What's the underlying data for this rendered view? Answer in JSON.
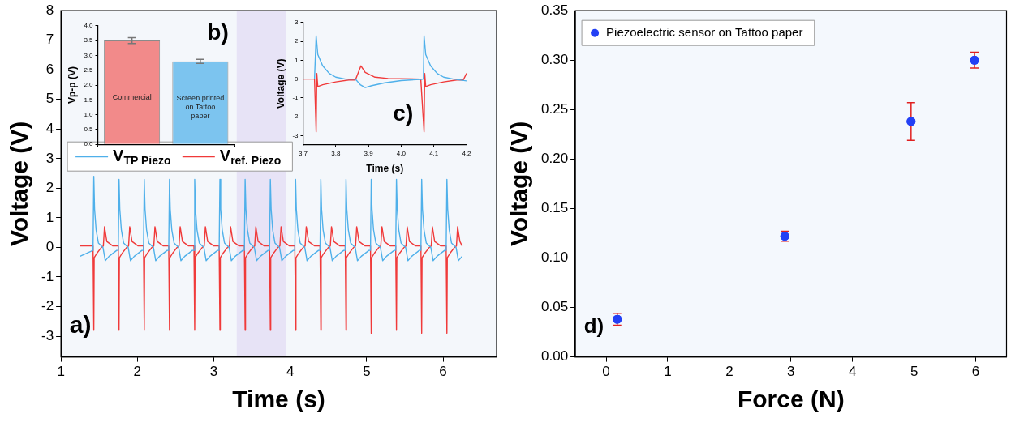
{
  "chart_data": [
    {
      "type": "line",
      "xlabel": "Time (s)",
      "ylabel": "Voltage (V)",
      "xlim": [
        1,
        6.7
      ],
      "xticks": [
        1,
        2,
        3,
        4,
        5,
        6
      ],
      "ylim": [
        -3.7,
        8
      ],
      "yticks": [
        -3,
        -2,
        -1,
        0,
        1,
        2,
        3,
        4,
        5,
        6,
        7,
        8
      ],
      "grid": false,
      "legend": "top left",
      "annotations": [
        "a)"
      ],
      "bands": [
        {
          "axis": "x",
          "from": 3.3,
          "to": 3.95,
          "color": "#e7e3f6"
        }
      ],
      "series": [
        {
          "name": "V$_{TP Piezo}$",
          "color": "#4fb0ea",
          "x": [
            1.25,
            1.42,
            1.43,
            1.44,
            1.46,
            1.49,
            1.55,
            1.58,
            1.63,
            1.73,
            1.75,
            1.76,
            1.77,
            1.79,
            1.82,
            1.88,
            1.91,
            1.96,
            2.06,
            2.08,
            2.09,
            2.1,
            2.12,
            2.15,
            2.21,
            2.24,
            2.29,
            2.39,
            2.41,
            2.42,
            2.43,
            2.45,
            2.48,
            2.54,
            2.57,
            2.62,
            2.72,
            2.74,
            2.75,
            2.76,
            2.78,
            2.81,
            2.87,
            2.9,
            2.95,
            3.05,
            3.07,
            3.08,
            3.09,
            3.11,
            3.14,
            3.2,
            3.23,
            3.28,
            3.38,
            3.4,
            3.41,
            3.42,
            3.44,
            3.47,
            3.53,
            3.56,
            3.61,
            3.71,
            3.73,
            3.74,
            3.75,
            3.77,
            3.8,
            3.86,
            3.89,
            3.94,
            4.04,
            4.06,
            4.07,
            4.08,
            4.1,
            4.13,
            4.19,
            4.22,
            4.27,
            4.37,
            4.39,
            4.4,
            4.41,
            4.43,
            4.46,
            4.52,
            4.55,
            4.6,
            4.7,
            4.72,
            4.73,
            4.74,
            4.76,
            4.79,
            4.85,
            4.88,
            4.93,
            5.03,
            5.05,
            5.06,
            5.07,
            5.09,
            5.12,
            5.18,
            5.21,
            5.26,
            5.36,
            5.38,
            5.39,
            5.4,
            5.42,
            5.45,
            5.51,
            5.54,
            5.59,
            5.69,
            5.71,
            5.72,
            5.73,
            5.75,
            5.78,
            5.84,
            5.87,
            5.92,
            6.02,
            6.04,
            6.05,
            6.06,
            6.08,
            6.11,
            6.17,
            6.2,
            6.25
          ],
          "values": [
            -0.3,
            -0.1,
            2.4,
            1.3,
            0.6,
            0.15,
            0,
            -0.45,
            -0.3,
            -0.1,
            -0.1,
            2.3,
            1.3,
            0.6,
            0.15,
            0,
            -0.45,
            -0.3,
            -0.1,
            -0.1,
            2.3,
            1.3,
            0.6,
            0.15,
            0,
            -0.45,
            -0.3,
            -0.1,
            -0.1,
            2.3,
            1.3,
            0.6,
            0.15,
            0,
            -0.45,
            -0.3,
            -0.1,
            -0.1,
            2.3,
            1.3,
            0.6,
            0.15,
            0,
            -0.45,
            -0.3,
            -0.1,
            -0.1,
            2.3,
            1.3,
            0.6,
            0.15,
            0,
            -0.45,
            -0.3,
            -0.1,
            -0.1,
            2.3,
            1.3,
            0.6,
            0.15,
            0,
            -0.45,
            -0.3,
            -0.1,
            -0.1,
            2.3,
            1.3,
            0.6,
            0.15,
            0,
            -0.45,
            -0.3,
            -0.1,
            -0.1,
            2.3,
            1.3,
            0.6,
            0.15,
            0,
            -0.45,
            -0.3,
            -0.1,
            -0.1,
            2.3,
            1.3,
            0.6,
            0.15,
            0,
            -0.45,
            -0.3,
            -0.1,
            -0.1,
            2.3,
            1.3,
            0.6,
            0.15,
            0,
            -0.45,
            -0.3,
            -0.1,
            -0.1,
            2.3,
            1.3,
            0.6,
            0.15,
            0,
            -0.45,
            -0.3,
            -0.1,
            -0.1,
            2.3,
            1.3,
            0.6,
            0.15,
            0,
            -0.45,
            -0.3,
            -0.1,
            -0.1,
            2.3,
            1.3,
            0.6,
            0.15,
            0,
            -0.45,
            -0.3,
            -0.1,
            -0.1,
            2.3,
            1.3,
            0.6,
            0.15,
            0,
            -0.45,
            -0.3
          ]
        },
        {
          "name": "V$_{ref. Piezo}$",
          "color": "#f03a3a",
          "x": [
            1.25,
            1.42,
            1.43,
            1.435,
            1.47,
            1.53,
            1.555,
            1.57,
            1.6,
            1.68,
            1.75,
            1.76,
            1.765,
            1.8,
            1.86,
            1.885,
            1.9,
            1.93,
            2.01,
            2.08,
            2.09,
            2.095,
            2.13,
            2.19,
            2.215,
            2.23,
            2.26,
            2.34,
            2.41,
            2.42,
            2.425,
            2.46,
            2.52,
            2.545,
            2.56,
            2.59,
            2.67,
            2.74,
            2.75,
            2.755,
            2.79,
            2.85,
            2.875,
            2.89,
            2.92,
            3.0,
            3.07,
            3.08,
            3.085,
            3.12,
            3.18,
            3.205,
            3.22,
            3.25,
            3.33,
            3.4,
            3.41,
            3.415,
            3.45,
            3.51,
            3.535,
            3.55,
            3.58,
            3.66,
            3.73,
            3.74,
            3.745,
            3.78,
            3.84,
            3.865,
            3.88,
            3.91,
            3.99,
            4.06,
            4.07,
            4.075,
            4.11,
            4.17,
            4.195,
            4.21,
            4.24,
            4.32,
            4.39,
            4.4,
            4.405,
            4.44,
            4.5,
            4.525,
            4.54,
            4.57,
            4.65,
            4.72,
            4.73,
            4.735,
            4.77,
            4.83,
            4.855,
            4.87,
            4.9,
            4.98,
            5.05,
            5.06,
            5.065,
            5.1,
            5.16,
            5.185,
            5.2,
            5.23,
            5.31,
            5.38,
            5.39,
            5.395,
            5.43,
            5.49,
            5.515,
            5.53,
            5.56,
            5.64,
            5.71,
            5.72,
            5.725,
            5.76,
            5.82,
            5.845,
            5.86,
            5.89,
            5.97,
            6.04,
            6.05,
            6.055,
            6.09,
            6.15,
            6.175,
            6.19,
            6.22,
            6.25
          ],
          "values": [
            0.05,
            0.05,
            -2.8,
            -0.35,
            -0.2,
            0,
            0.05,
            0.7,
            0.2,
            0.05,
            0.05,
            -2.8,
            -0.35,
            -0.2,
            0,
            0.05,
            0.7,
            0.2,
            0.05,
            0.05,
            -2.8,
            -0.35,
            -0.2,
            0,
            0.05,
            0.7,
            0.2,
            0.05,
            0.05,
            -2.8,
            -0.35,
            -0.2,
            0,
            0.05,
            0.7,
            0.2,
            0.05,
            0.05,
            -2.8,
            -0.35,
            -0.2,
            0,
            0.05,
            0.7,
            0.2,
            0.05,
            0.05,
            -2.8,
            -0.35,
            -0.2,
            0,
            0.05,
            0.7,
            0.2,
            0.05,
            0.05,
            -2.8,
            -0.35,
            -0.2,
            0,
            0.05,
            0.7,
            0.2,
            0.05,
            0.05,
            -2.8,
            -0.35,
            -0.2,
            0,
            0.05,
            0.7,
            0.2,
            0.05,
            0.05,
            -2.8,
            -0.35,
            -0.2,
            0,
            0.05,
            0.7,
            0.2,
            0.05,
            0.05,
            -2.8,
            -0.35,
            -0.2,
            0,
            0.05,
            0.7,
            0.2,
            0.05,
            0.05,
            -2.8,
            -0.35,
            -0.2,
            0,
            0.05,
            0.7,
            0.2,
            0.05,
            0.05,
            -2.9,
            -0.35,
            -0.2,
            0,
            0.05,
            0.7,
            0.2,
            0.05,
            0.05,
            -2.8,
            -0.35,
            -0.2,
            0,
            0.05,
            0.7,
            0.2,
            0.05,
            0.05,
            -2.9,
            -0.35,
            -0.2,
            0,
            0.05,
            0.7,
            0.2,
            0.05,
            0.05,
            -2.9,
            -0.35,
            -0.2,
            0,
            0.05,
            0.7,
            0.2,
            0.05
          ]
        }
      ]
    },
    {
      "type": "bar",
      "ylabel": "Vp-p (V)",
      "categories": [
        "Commercial",
        "Screen printed on Tattoo paper"
      ],
      "values": [
        3.5,
        2.8
      ],
      "errors": [
        0.1,
        0.07
      ],
      "colors": [
        "#f28a8a",
        "#7cc4ef"
      ],
      "ylim": [
        0,
        4
      ],
      "yticks": [
        {
          "value": 0,
          "label": "0.0"
        },
        {
          "value": 0.5,
          "label": "0.5"
        },
        {
          "value": 1,
          "label": "1.0"
        },
        {
          "value": 1.5,
          "label": "1.5"
        },
        {
          "value": 2,
          "label": "2.0"
        },
        {
          "value": 2.5,
          "label": "2.5"
        },
        {
          "value": 3,
          "label": "3.0"
        },
        {
          "value": 3.5,
          "label": "3.5"
        },
        {
          "value": 4,
          "label": "4.0"
        }
      ],
      "tick_labels": "y",
      "grid": false,
      "annotations": [
        "b)"
      ]
    },
    {
      "type": "line",
      "xlabel": "Time (s)",
      "ylabel": "Voltage (V)",
      "xlim": [
        3.7,
        4.2
      ],
      "xticks": [
        3.7,
        3.8,
        3.9,
        {
          "value": 4,
          "label": "4.0"
        },
        4.1,
        4.2
      ],
      "ylim": [
        -3.5,
        3
      ],
      "yticks": [
        -3,
        -2,
        -1,
        0,
        1,
        2,
        3
      ],
      "grid": false,
      "annotations": [
        "c)"
      ],
      "series": [
        {
          "color": "#4fb0ea",
          "x": [
            3.735,
            3.74,
            3.745,
            3.76,
            3.78,
            3.8,
            3.83,
            3.86,
            3.875,
            3.89,
            3.91,
            3.95,
            4.0,
            4.06,
            4.068,
            4.07,
            4.075,
            4.09,
            4.11,
            4.13,
            4.16,
            4.2
          ],
          "values": [
            0,
            2.3,
            1.3,
            0.7,
            0.3,
            0.1,
            0,
            0,
            -0.3,
            -0.45,
            -0.35,
            -0.2,
            -0.08,
            -0.02,
            0,
            2.3,
            1.3,
            0.7,
            0.3,
            0.1,
            0,
            -0.1
          ]
        },
        {
          "color": "#f03a3a",
          "x": [
            3.7,
            3.735,
            3.74,
            3.742,
            3.745,
            3.76,
            3.8,
            3.84,
            3.86,
            3.877,
            3.89,
            3.92,
            3.96,
            4.06,
            4.07,
            4.072,
            4.075,
            4.09,
            4.13,
            4.17,
            4.19,
            4.2
          ],
          "values": [
            0,
            0,
            -2.8,
            0.3,
            -0.4,
            -0.3,
            -0.15,
            -0.05,
            -0.05,
            0.7,
            0.35,
            0.1,
            0.03,
            0,
            -2.8,
            0.3,
            -0.4,
            -0.3,
            -0.15,
            -0.05,
            -0.05,
            0.3
          ]
        }
      ]
    },
    {
      "type": "scatter",
      "xlabel": "Force (N)",
      "ylabel": "Voltage (V)",
      "xlim": [
        -0.5,
        6.5
      ],
      "xticks": [
        0,
        1,
        2,
        3,
        4,
        5,
        6
      ],
      "ylim": [
        0,
        0.35
      ],
      "yticks": [
        {
          "value": 0,
          "label": "0.00"
        },
        {
          "value": 0.05,
          "label": "0.05"
        },
        {
          "value": 0.1,
          "label": "0.10"
        },
        {
          "value": 0.15,
          "label": "0.15"
        },
        {
          "value": 0.2,
          "label": "0.20"
        },
        {
          "value": 0.25,
          "label": "0.25"
        },
        {
          "value": 0.3,
          "label": "0.30"
        },
        {
          "value": 0.35,
          "label": "0.35"
        }
      ],
      "grid": false,
      "legend": "top left",
      "marker": "circle",
      "annotations": [
        "d)"
      ],
      "series": [
        {
          "name": "Piezoelectric sensor on Tattoo paper",
          "color": "#2340f5",
          "x": [
            0.18,
            2.9,
            4.95,
            5.98
          ],
          "values": [
            0.038,
            0.122,
            0.238,
            0.3
          ],
          "errors": [
            0.006,
            0.005,
            0.019,
            0.008
          ]
        }
      ]
    }
  ]
}
